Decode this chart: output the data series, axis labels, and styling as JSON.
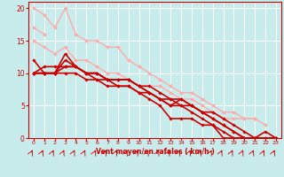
{
  "bg_color": "#c8ecec",
  "grid_color": "#ffffff",
  "xlabel": "Vent moyen/en rafales ( km/h )",
  "xlabel_color": "#cc0000",
  "tick_color": "#cc0000",
  "xlim": [
    -0.5,
    23.5
  ],
  "ylim": [
    0,
    21
  ],
  "yticks": [
    0,
    5,
    10,
    15,
    20
  ],
  "xticks": [
    0,
    1,
    2,
    3,
    4,
    5,
    6,
    7,
    8,
    9,
    10,
    11,
    12,
    13,
    14,
    15,
    16,
    17,
    18,
    19,
    20,
    21,
    22,
    23
  ],
  "lines": [
    {
      "x": [
        0,
        1,
        2,
        3,
        4,
        5,
        6,
        7,
        8,
        9,
        10,
        11,
        12,
        13,
        14,
        15,
        16,
        17,
        18,
        19,
        20,
        21,
        22
      ],
      "y": [
        20,
        19,
        17,
        20,
        16,
        15,
        15,
        14,
        14,
        12,
        11,
        10,
        9,
        8,
        7,
        7,
        6,
        5,
        4,
        4,
        3,
        3,
        2
      ],
      "color": "#ffaaaa",
      "lw": 1.0,
      "marker": "D",
      "ms": 2.0
    },
    {
      "x": [
        0,
        1
      ],
      "y": [
        17,
        16
      ],
      "color": "#ffaaaa",
      "lw": 1.0,
      "marker": "D",
      "ms": 2.0
    },
    {
      "x": [
        0,
        1,
        2,
        3,
        4,
        5,
        6,
        7,
        8,
        9,
        10,
        11,
        12,
        13,
        14,
        15,
        16,
        17,
        18,
        19,
        20,
        21
      ],
      "y": [
        15,
        14,
        13,
        14,
        12,
        12,
        11,
        10,
        10,
        9,
        8,
        8,
        8,
        7,
        6,
        6,
        5,
        4,
        3,
        3,
        3,
        3
      ],
      "color": "#ffaaaa",
      "lw": 1.0,
      "marker": "D",
      "ms": 2.0
    },
    {
      "x": [
        0,
        1,
        2,
        3,
        4,
        5,
        6,
        7,
        8,
        9,
        10,
        11,
        12,
        13,
        14,
        15,
        16,
        17,
        18,
        19,
        20,
        21,
        22,
        23
      ],
      "y": [
        12,
        10,
        10,
        13,
        11,
        10,
        10,
        9,
        9,
        9,
        8,
        8,
        7,
        6,
        6,
        5,
        4,
        3,
        2,
        1,
        0,
        0,
        1,
        0
      ],
      "color": "#cc0000",
      "lw": 1.2,
      "marker": "D",
      "ms": 1.8
    },
    {
      "x": [
        0,
        1,
        2,
        3,
        4,
        5,
        6,
        7,
        8,
        9,
        10,
        11,
        12,
        13,
        14,
        15,
        16,
        17,
        18,
        19,
        20,
        21,
        22,
        23
      ],
      "y": [
        10,
        10,
        10,
        12,
        11,
        10,
        10,
        9,
        9,
        9,
        8,
        7,
        6,
        6,
        5,
        5,
        4,
        3,
        2,
        1,
        0,
        0,
        0,
        0
      ],
      "color": "#cc0000",
      "lw": 1.2,
      "marker": "D",
      "ms": 1.8
    },
    {
      "x": [
        0,
        1,
        2,
        3,
        4,
        5,
        6,
        7,
        8,
        9,
        10,
        11,
        12,
        13,
        14,
        15,
        16,
        17,
        18,
        19,
        20,
        21,
        22,
        23
      ],
      "y": [
        10,
        11,
        11,
        11,
        11,
        10,
        10,
        9,
        9,
        9,
        8,
        7,
        6,
        5,
        5,
        4,
        3,
        2,
        1,
        0,
        0,
        0,
        0,
        0
      ],
      "color": "#cc0000",
      "lw": 1.2,
      "marker": "D",
      "ms": 1.8
    },
    {
      "x": [
        0,
        1,
        2,
        3,
        4,
        5,
        6,
        7,
        8,
        9,
        10,
        11,
        12,
        13,
        14,
        15,
        16,
        17,
        18,
        19,
        20,
        21,
        22,
        23
      ],
      "y": [
        10,
        10,
        10,
        11,
        11,
        10,
        9,
        9,
        8,
        8,
        7,
        7,
        6,
        5,
        6,
        5,
        4,
        4,
        3,
        2,
        1,
        0,
        0,
        0
      ],
      "color": "#cc0000",
      "lw": 1.2,
      "marker": "D",
      "ms": 1.8
    },
    {
      "x": [
        0,
        1,
        2,
        3,
        4,
        5,
        6,
        7,
        8,
        9,
        10,
        11,
        12,
        13,
        14,
        15,
        16,
        17,
        18,
        19,
        20
      ],
      "y": [
        10,
        10,
        10,
        10,
        10,
        9,
        9,
        8,
        8,
        8,
        7,
        6,
        5,
        3,
        3,
        3,
        2,
        2,
        0,
        0,
        0
      ],
      "color": "#cc0000",
      "lw": 1.2,
      "marker": "D",
      "ms": 1.8
    }
  ]
}
